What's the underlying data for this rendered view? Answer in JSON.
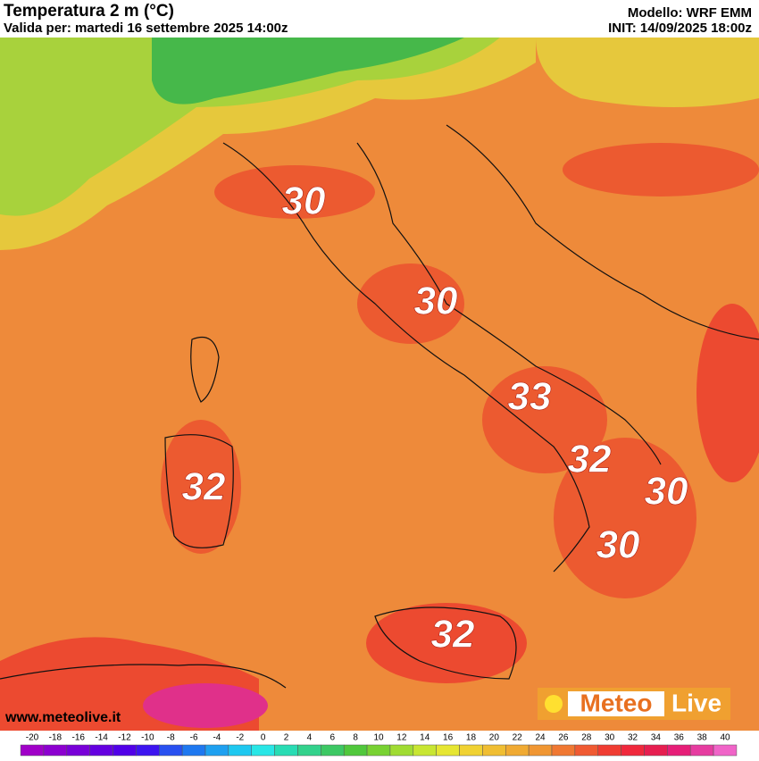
{
  "header": {
    "title": "Temperatura 2 m (°C)",
    "valid": "Valida per: martedi 16 settembre 2025 14:00z",
    "model": "Modello: WRF EMM",
    "init": "INIT: 14/09/2025 18:00z"
  },
  "max_labels": [
    "30",
    "30",
    "33",
    "32",
    "32",
    "30",
    "30",
    "32"
  ],
  "website": "www.meteolive.it",
  "logo": {
    "part1": "Meteo",
    "part2": "Live"
  },
  "colorbar": {
    "ticks": [
      -20,
      -18,
      -16,
      -14,
      -12,
      -10,
      -8,
      -6,
      -4,
      -2,
      0,
      2,
      4,
      6,
      8,
      10,
      12,
      14,
      16,
      18,
      20,
      22,
      24,
      26,
      28,
      30,
      32,
      34,
      36,
      38,
      40
    ],
    "colors": [
      "#a000c8",
      "#8c00d0",
      "#7800d8",
      "#6400e0",
      "#5000e8",
      "#3c14f0",
      "#2850f0",
      "#1e78f0",
      "#1ea0f0",
      "#1ec8f0",
      "#28e6e6",
      "#28dcb4",
      "#32d28c",
      "#3cc864",
      "#50c83c",
      "#78d232",
      "#a0dc32",
      "#c8e632",
      "#e6e632",
      "#f0d232",
      "#f0be32",
      "#f0aa32",
      "#f09632",
      "#f07832",
      "#f05a32",
      "#f03c32",
      "#f0283c",
      "#e61e50",
      "#e61e78",
      "#e63ca0",
      "#f064c8"
    ]
  }
}
